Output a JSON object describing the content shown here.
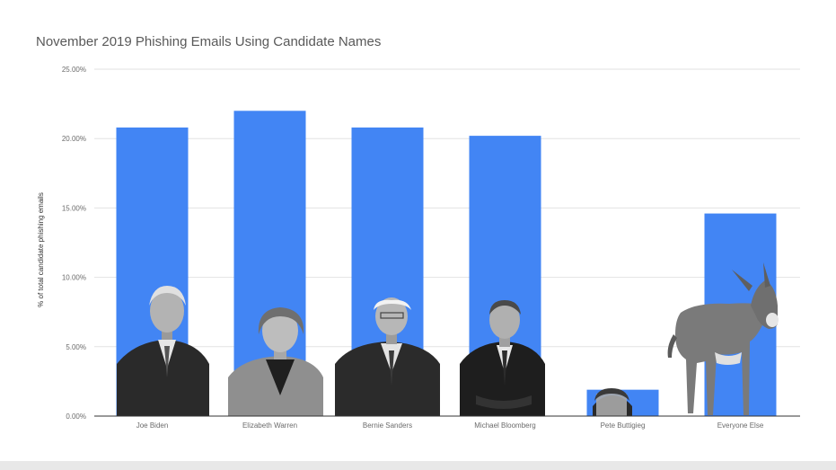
{
  "chart_data": {
    "type": "bar",
    "title": "November 2019 Phishing Emails Using Candidate Names",
    "xlabel": "",
    "ylabel": "% of total candidate phishing emails",
    "categories": [
      "Joe Biden",
      "Elizabeth Warren",
      "Bernie Sanders",
      "Michael Bloomberg",
      "Pete Buttigieg",
      "Everyone Else"
    ],
    "values": [
      20.8,
      22.0,
      20.8,
      20.2,
      1.9,
      14.6
    ],
    "ylim": [
      0,
      25
    ],
    "yticks": [
      "0.00%",
      "5.00%",
      "10.00%",
      "15.00%",
      "20.00%",
      "25.00%"
    ],
    "grid": true,
    "legend": "none",
    "bar_color": "#4285f4"
  }
}
